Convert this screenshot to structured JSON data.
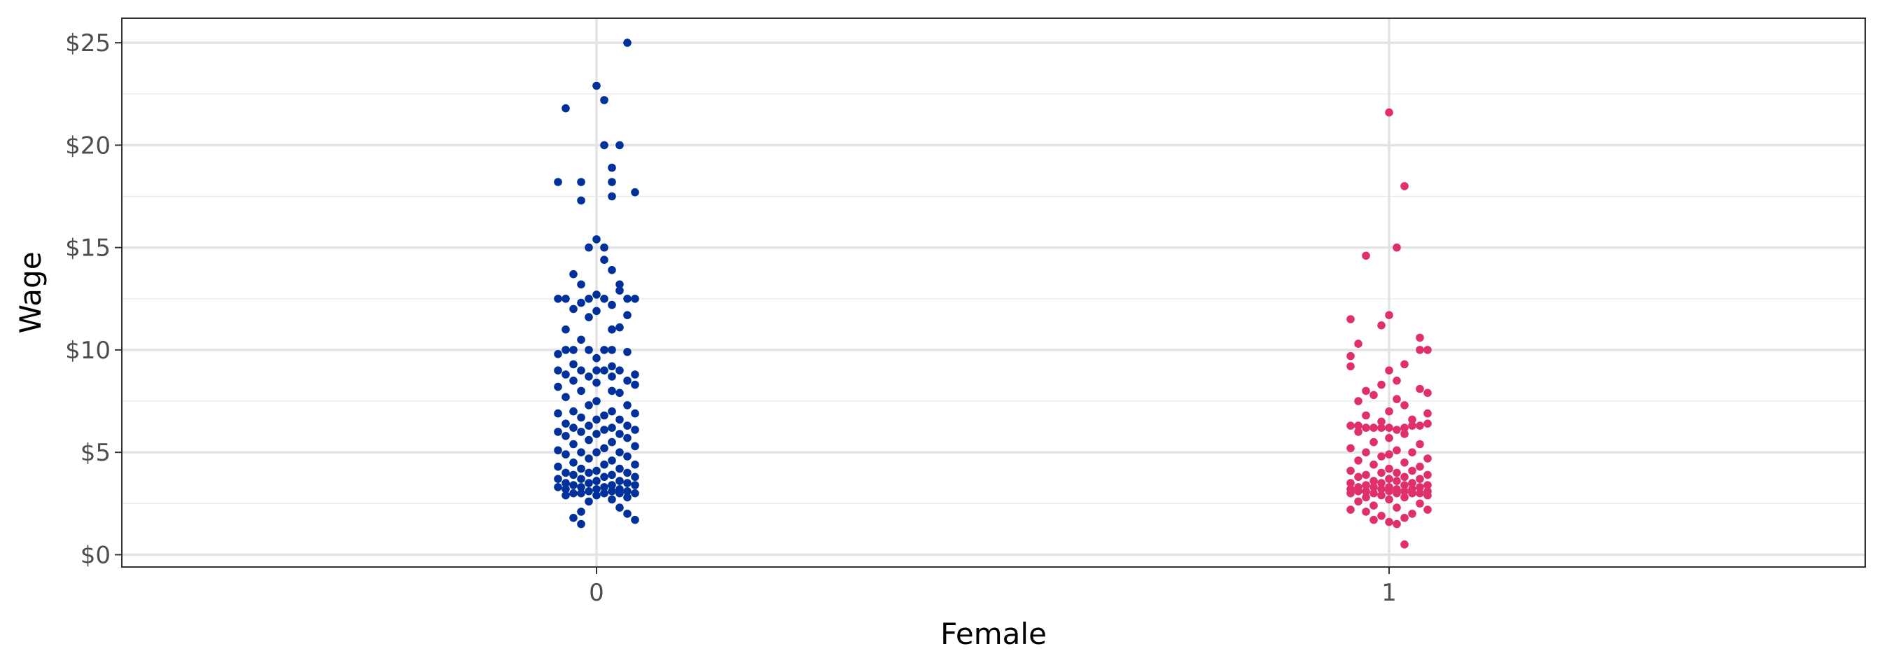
{
  "chart_data": {
    "type": "scatter",
    "title": "",
    "xlabel": "Female",
    "ylabel": "Wage",
    "categories": [
      "0",
      "1"
    ],
    "ylim": [
      -0.6,
      26.2
    ],
    "y_ticks": [
      {
        "value": 0,
        "label": "$0"
      },
      {
        "value": 5,
        "label": "$5"
      },
      {
        "value": 10,
        "label": "$10"
      },
      {
        "value": 15,
        "label": "$15"
      },
      {
        "value": 20,
        "label": "$20"
      },
      {
        "value": 25,
        "label": "$25"
      }
    ],
    "grid": true,
    "legend": "none",
    "series": [
      {
        "category": "0",
        "color": "#00309a",
        "points": [
          [
            0.04,
            25.0
          ],
          [
            0.0,
            22.9
          ],
          [
            0.01,
            22.2
          ],
          [
            -0.04,
            21.8
          ],
          [
            0.01,
            20.0
          ],
          [
            0.03,
            20.0
          ],
          [
            0.02,
            18.9
          ],
          [
            -0.05,
            18.2
          ],
          [
            -0.02,
            18.2
          ],
          [
            0.02,
            18.2
          ],
          [
            0.05,
            17.7
          ],
          [
            0.02,
            17.5
          ],
          [
            -0.02,
            17.3
          ],
          [
            0.0,
            15.4
          ],
          [
            0.01,
            15.0
          ],
          [
            -0.01,
            15.0
          ],
          [
            0.01,
            14.4
          ],
          [
            0.02,
            13.9
          ],
          [
            -0.03,
            13.7
          ],
          [
            0.03,
            13.2
          ],
          [
            -0.02,
            13.2
          ],
          [
            0.03,
            12.9
          ],
          [
            0.0,
            12.7
          ],
          [
            -0.05,
            12.5
          ],
          [
            -0.04,
            12.5
          ],
          [
            -0.01,
            12.5
          ],
          [
            0.01,
            12.5
          ],
          [
            0.04,
            12.5
          ],
          [
            0.05,
            12.5
          ],
          [
            -0.02,
            12.3
          ],
          [
            0.02,
            12.2
          ],
          [
            -0.03,
            12.0
          ],
          [
            0.0,
            11.9
          ],
          [
            -0.01,
            11.6
          ],
          [
            0.04,
            11.7
          ],
          [
            0.03,
            11.1
          ],
          [
            0.02,
            11.0
          ],
          [
            -0.04,
            11.0
          ],
          [
            -0.02,
            10.5
          ],
          [
            -0.04,
            10.0
          ],
          [
            -0.03,
            10.0
          ],
          [
            -0.01,
            10.0
          ],
          [
            0.01,
            10.0
          ],
          [
            0.02,
            10.0
          ],
          [
            -0.05,
            9.8
          ],
          [
            0.04,
            9.9
          ],
          [
            0.0,
            9.6
          ],
          [
            -0.03,
            9.3
          ],
          [
            0.02,
            9.2
          ],
          [
            -0.05,
            9.0
          ],
          [
            -0.02,
            9.0
          ],
          [
            0.0,
            9.0
          ],
          [
            0.01,
            9.0
          ],
          [
            0.03,
            9.0
          ],
          [
            0.05,
            8.8
          ],
          [
            -0.04,
            8.8
          ],
          [
            0.02,
            8.7
          ],
          [
            -0.01,
            8.7
          ],
          [
            0.04,
            8.5
          ],
          [
            -0.03,
            8.5
          ],
          [
            0.0,
            8.4
          ],
          [
            0.05,
            8.3
          ],
          [
            -0.05,
            8.2
          ],
          [
            0.02,
            8.0
          ],
          [
            -0.02,
            8.0
          ],
          [
            0.03,
            7.9
          ],
          [
            -0.04,
            7.7
          ],
          [
            0.0,
            7.5
          ],
          [
            0.04,
            7.3
          ],
          [
            -0.01,
            7.3
          ],
          [
            0.02,
            7.0
          ],
          [
            -0.03,
            7.0
          ],
          [
            0.05,
            6.9
          ],
          [
            -0.05,
            6.9
          ],
          [
            0.01,
            6.8
          ],
          [
            -0.02,
            6.7
          ],
          [
            0.03,
            6.6
          ],
          [
            0.0,
            6.6
          ],
          [
            -0.04,
            6.4
          ],
          [
            0.04,
            6.3
          ],
          [
            -0.01,
            6.3
          ],
          [
            0.02,
            6.2
          ],
          [
            -0.03,
            6.2
          ],
          [
            0.05,
            6.1
          ],
          [
            0.01,
            6.1
          ],
          [
            -0.05,
            6.0
          ],
          [
            -0.02,
            6.0
          ],
          [
            0.03,
            5.9
          ],
          [
            0.0,
            5.9
          ],
          [
            -0.04,
            5.8
          ],
          [
            0.04,
            5.7
          ],
          [
            -0.01,
            5.6
          ],
          [
            0.02,
            5.5
          ],
          [
            -0.03,
            5.4
          ],
          [
            0.05,
            5.3
          ],
          [
            0.01,
            5.2
          ],
          [
            -0.05,
            5.1
          ],
          [
            -0.02,
            5.0
          ],
          [
            0.03,
            5.0
          ],
          [
            0.0,
            5.0
          ],
          [
            -0.04,
            4.9
          ],
          [
            0.04,
            4.8
          ],
          [
            -0.01,
            4.7
          ],
          [
            0.02,
            4.6
          ],
          [
            -0.03,
            4.5
          ],
          [
            0.05,
            4.4
          ],
          [
            0.01,
            4.4
          ],
          [
            -0.05,
            4.3
          ],
          [
            -0.02,
            4.2
          ],
          [
            0.03,
            4.2
          ],
          [
            0.0,
            4.1
          ],
          [
            -0.04,
            4.0
          ],
          [
            0.04,
            4.0
          ],
          [
            -0.01,
            4.0
          ],
          [
            0.02,
            3.9
          ],
          [
            -0.03,
            3.9
          ],
          [
            0.05,
            3.8
          ],
          [
            0.01,
            3.8
          ],
          [
            -0.05,
            3.7
          ],
          [
            -0.02,
            3.7
          ],
          [
            0.03,
            3.6
          ],
          [
            0.0,
            3.6
          ],
          [
            -0.04,
            3.5
          ],
          [
            0.04,
            3.5
          ],
          [
            -0.01,
            3.5
          ],
          [
            0.02,
            3.4
          ],
          [
            -0.03,
            3.4
          ],
          [
            0.05,
            3.4
          ],
          [
            0.01,
            3.3
          ],
          [
            -0.05,
            3.3
          ],
          [
            -0.02,
            3.3
          ],
          [
            0.03,
            3.2
          ],
          [
            0.0,
            3.2
          ],
          [
            -0.04,
            3.2
          ],
          [
            0.04,
            3.1
          ],
          [
            -0.01,
            3.1
          ],
          [
            0.02,
            3.1
          ],
          [
            -0.03,
            3.0
          ],
          [
            0.05,
            3.0
          ],
          [
            0.01,
            3.0
          ],
          [
            -0.02,
            3.0
          ],
          [
            0.03,
            3.0
          ],
          [
            0.0,
            2.9
          ],
          [
            -0.04,
            2.9
          ],
          [
            0.04,
            2.8
          ],
          [
            0.02,
            2.7
          ],
          [
            -0.01,
            2.6
          ],
          [
            0.03,
            2.3
          ],
          [
            -0.02,
            2.1
          ],
          [
            0.04,
            2.0
          ],
          [
            -0.03,
            1.8
          ],
          [
            0.05,
            1.7
          ],
          [
            -0.02,
            1.5
          ]
        ]
      },
      {
        "category": "1",
        "color": "#e0306a",
        "points": [
          [
            0.0,
            21.6
          ],
          [
            0.02,
            18.0
          ],
          [
            0.01,
            15.0
          ],
          [
            -0.03,
            14.6
          ],
          [
            -0.05,
            11.5
          ],
          [
            0.0,
            11.7
          ],
          [
            -0.01,
            11.2
          ],
          [
            0.04,
            10.6
          ],
          [
            -0.04,
            10.3
          ],
          [
            0.05,
            10.0
          ],
          [
            0.04,
            10.0
          ],
          [
            -0.05,
            9.7
          ],
          [
            0.02,
            9.3
          ],
          [
            -0.05,
            9.2
          ],
          [
            0.0,
            9.0
          ],
          [
            0.01,
            8.5
          ],
          [
            -0.01,
            8.3
          ],
          [
            0.04,
            8.1
          ],
          [
            -0.03,
            8.0
          ],
          [
            0.05,
            7.9
          ],
          [
            -0.02,
            7.8
          ],
          [
            0.01,
            7.6
          ],
          [
            -0.04,
            7.5
          ],
          [
            0.02,
            7.3
          ],
          [
            0.0,
            7.0
          ],
          [
            0.05,
            6.9
          ],
          [
            -0.03,
            6.8
          ],
          [
            0.03,
            6.6
          ],
          [
            -0.01,
            6.5
          ],
          [
            -0.05,
            6.3
          ],
          [
            -0.04,
            6.3
          ],
          [
            -0.03,
            6.2
          ],
          [
            -0.02,
            6.2
          ],
          [
            -0.01,
            6.2
          ],
          [
            0.0,
            6.2
          ],
          [
            0.01,
            6.1
          ],
          [
            0.02,
            6.2
          ],
          [
            0.03,
            6.3
          ],
          [
            0.04,
            6.3
          ],
          [
            0.05,
            6.4
          ],
          [
            -0.04,
            6.0
          ],
          [
            0.02,
            5.9
          ],
          [
            0.0,
            5.7
          ],
          [
            -0.02,
            5.5
          ],
          [
            0.04,
            5.4
          ],
          [
            -0.05,
            5.2
          ],
          [
            0.01,
            5.1
          ],
          [
            -0.03,
            5.0
          ],
          [
            0.03,
            5.0
          ],
          [
            0.0,
            4.9
          ],
          [
            -0.01,
            4.8
          ],
          [
            0.05,
            4.7
          ],
          [
            -0.04,
            4.6
          ],
          [
            0.02,
            4.5
          ],
          [
            -0.02,
            4.4
          ],
          [
            0.04,
            4.3
          ],
          [
            0.0,
            4.2
          ],
          [
            -0.05,
            4.1
          ],
          [
            0.03,
            4.1
          ],
          [
            -0.01,
            4.0
          ],
          [
            0.01,
            4.0
          ],
          [
            -0.03,
            3.9
          ],
          [
            0.05,
            3.9
          ],
          [
            0.02,
            3.8
          ],
          [
            -0.04,
            3.8
          ],
          [
            0.0,
            3.7
          ],
          [
            0.04,
            3.7
          ],
          [
            -0.02,
            3.6
          ],
          [
            0.01,
            3.6
          ],
          [
            -0.05,
            3.5
          ],
          [
            0.03,
            3.5
          ],
          [
            -0.01,
            3.5
          ],
          [
            0.05,
            3.4
          ],
          [
            -0.03,
            3.4
          ],
          [
            0.02,
            3.4
          ],
          [
            0.0,
            3.3
          ],
          [
            -0.04,
            3.3
          ],
          [
            0.04,
            3.3
          ],
          [
            -0.02,
            3.3
          ],
          [
            0.01,
            3.2
          ],
          [
            -0.05,
            3.2
          ],
          [
            0.03,
            3.2
          ],
          [
            -0.01,
            3.2
          ],
          [
            0.05,
            3.1
          ],
          [
            -0.03,
            3.1
          ],
          [
            0.02,
            3.1
          ],
          [
            0.0,
            3.1
          ],
          [
            -0.04,
            3.1
          ],
          [
            0.04,
            3.0
          ],
          [
            -0.02,
            3.0
          ],
          [
            0.01,
            3.0
          ],
          [
            -0.05,
            3.0
          ],
          [
            0.03,
            3.0
          ],
          [
            -0.01,
            2.9
          ],
          [
            0.05,
            2.9
          ],
          [
            -0.03,
            2.8
          ],
          [
            0.02,
            2.8
          ],
          [
            0.0,
            2.7
          ],
          [
            -0.04,
            2.6
          ],
          [
            0.04,
            2.5
          ],
          [
            -0.02,
            2.4
          ],
          [
            0.01,
            2.3
          ],
          [
            -0.05,
            2.2
          ],
          [
            0.05,
            2.2
          ],
          [
            -0.03,
            2.1
          ],
          [
            0.03,
            2.0
          ],
          [
            -0.01,
            1.9
          ],
          [
            0.02,
            1.8
          ],
          [
            -0.02,
            1.7
          ],
          [
            0.0,
            1.6
          ],
          [
            0.01,
            1.5
          ],
          [
            0.02,
            0.5
          ]
        ]
      }
    ]
  }
}
